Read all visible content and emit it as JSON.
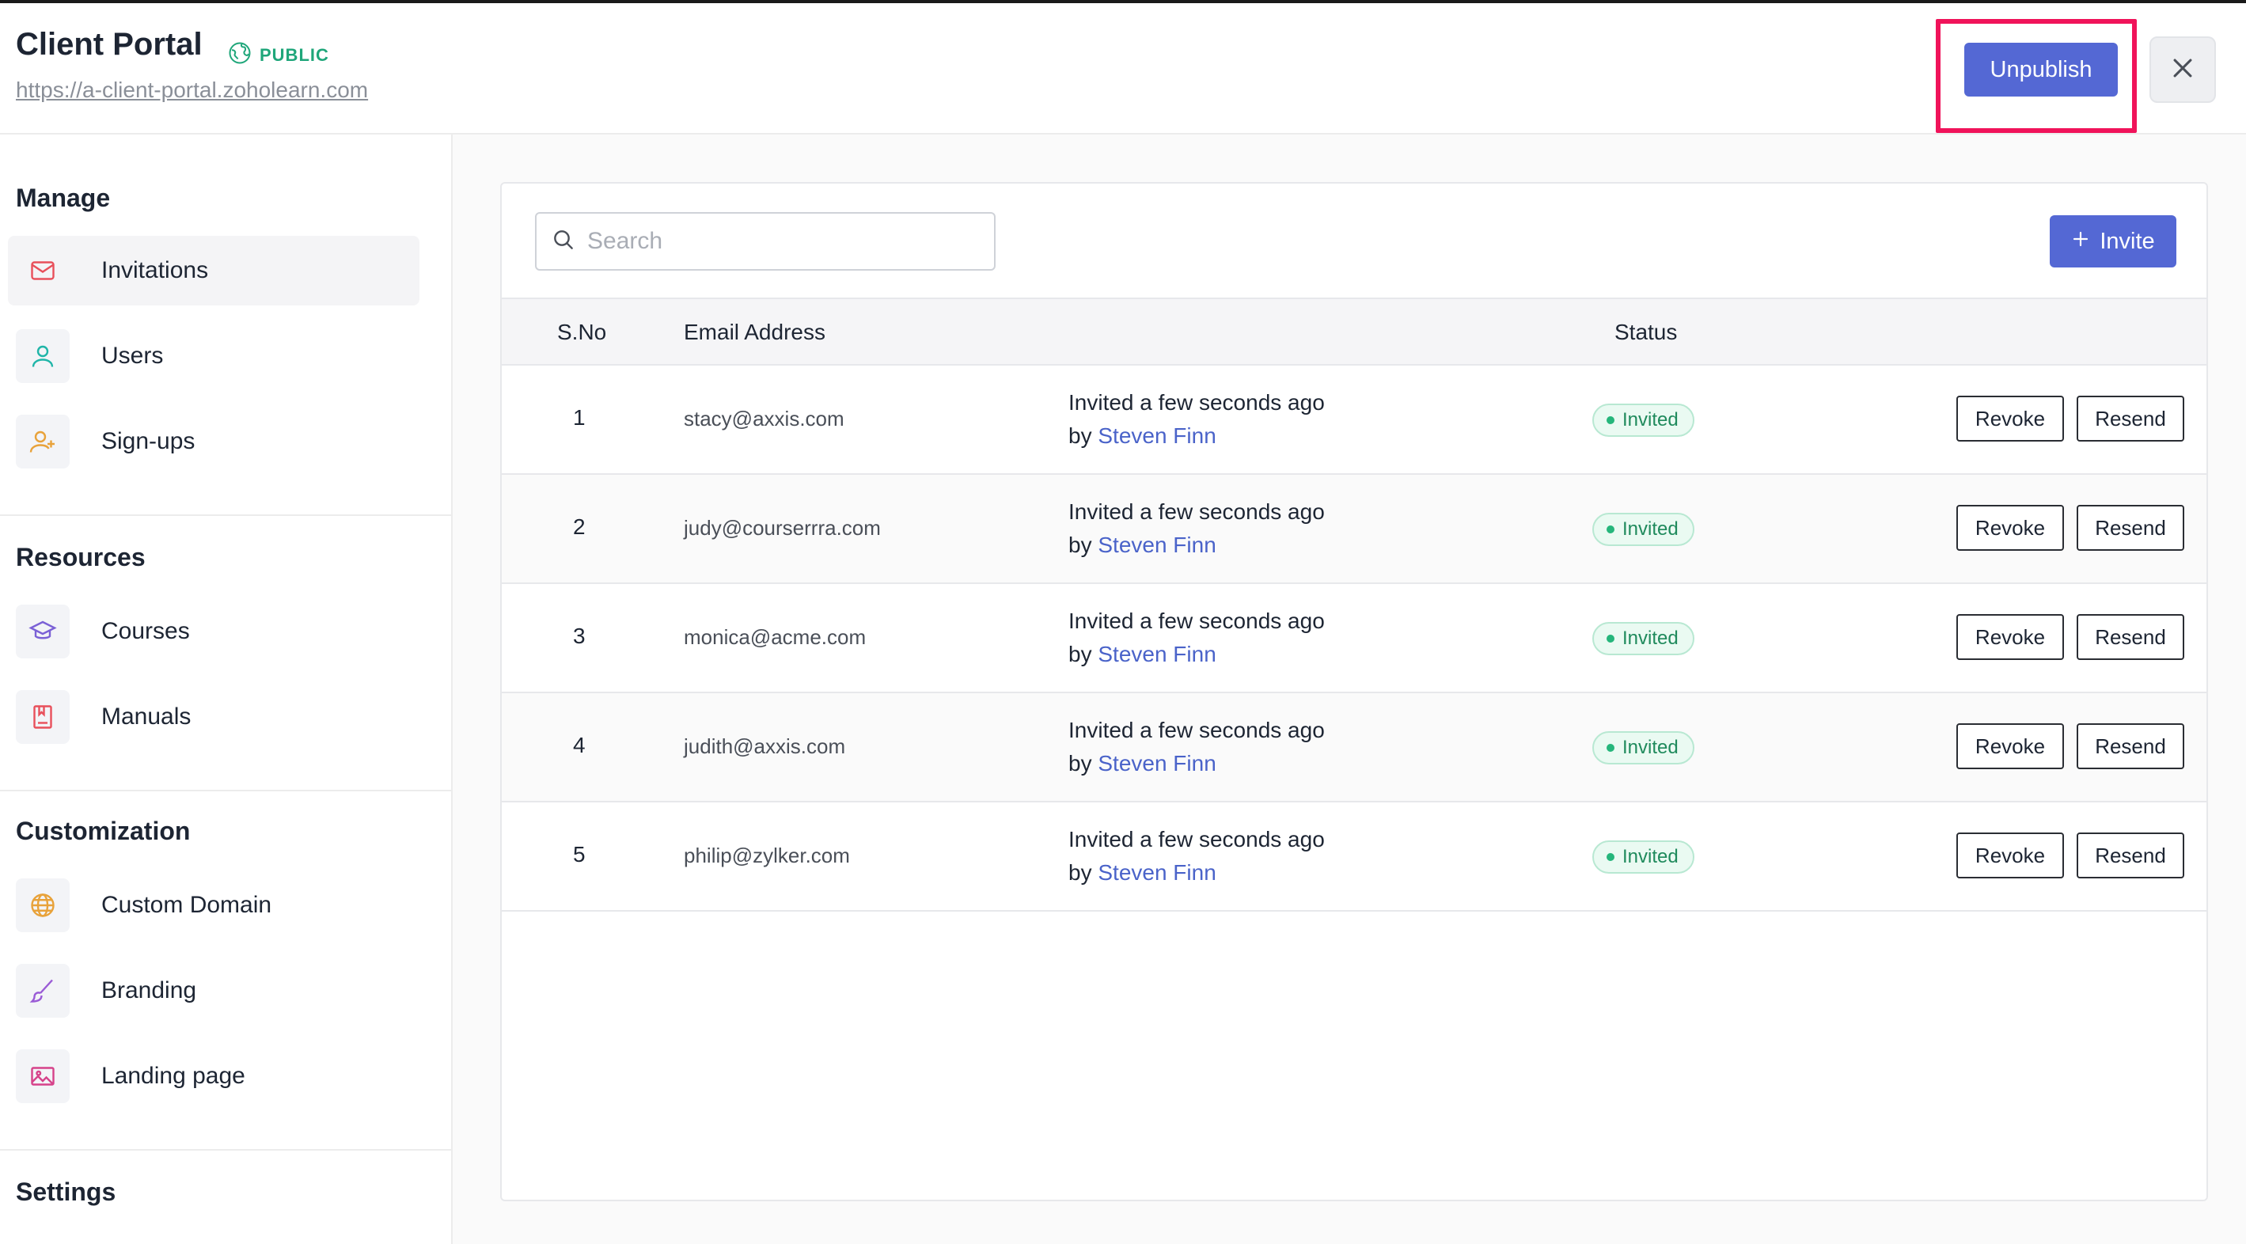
{
  "header": {
    "title": "Client Portal",
    "visibility_badge": "PUBLIC",
    "url": "https://a-client-portal.zoholearn.com",
    "unpublish_label": "Unpublish"
  },
  "sidebar": {
    "sections": [
      {
        "title": "Manage",
        "items": [
          {
            "label": "Invitations",
            "icon": "mail-icon",
            "active": true
          },
          {
            "label": "Users",
            "icon": "user-icon"
          },
          {
            "label": "Sign-ups",
            "icon": "user-add-icon"
          }
        ]
      },
      {
        "title": "Resources",
        "items": [
          {
            "label": "Courses",
            "icon": "graduation-cap-icon"
          },
          {
            "label": "Manuals",
            "icon": "book-icon"
          }
        ]
      },
      {
        "title": "Customization",
        "items": [
          {
            "label": "Custom Domain",
            "icon": "globe-icon"
          },
          {
            "label": "Branding",
            "icon": "brush-icon"
          },
          {
            "label": "Landing page",
            "icon": "image-icon"
          }
        ]
      },
      {
        "title": "Settings",
        "items": []
      }
    ]
  },
  "main": {
    "search_placeholder": "Search",
    "invite_label": "Invite",
    "columns": {
      "sno": "S.No",
      "email": "Email Address",
      "status": "Status"
    },
    "rows": [
      {
        "sno": "1",
        "email": "stacy@axxis.com",
        "invited": "Invited a few seconds ago",
        "by_prefix": "by",
        "by_name": "Steven Finn",
        "status": "Invited",
        "revoke": "Revoke",
        "resend": "Resend"
      },
      {
        "sno": "2",
        "email": "judy@courserrra.com",
        "invited": "Invited a few seconds ago",
        "by_prefix": "by",
        "by_name": "Steven Finn",
        "status": "Invited",
        "revoke": "Revoke",
        "resend": "Resend"
      },
      {
        "sno": "3",
        "email": "monica@acme.com",
        "invited": "Invited a few seconds ago",
        "by_prefix": "by",
        "by_name": "Steven Finn",
        "status": "Invited",
        "revoke": "Revoke",
        "resend": "Resend"
      },
      {
        "sno": "4",
        "email": "judith@axxis.com",
        "invited": "Invited a few seconds ago",
        "by_prefix": "by",
        "by_name": "Steven Finn",
        "status": "Invited",
        "revoke": "Revoke",
        "resend": "Resend"
      },
      {
        "sno": "5",
        "email": "philip@zylker.com",
        "invited": "Invited a few seconds ago",
        "by_prefix": "by",
        "by_name": "Steven Finn",
        "status": "Invited",
        "revoke": "Revoke",
        "resend": "Resend"
      }
    ]
  },
  "colors": {
    "accent": "#5468d4",
    "highlight": "#f0135a",
    "public_green": "#1fa67a",
    "status_green": "#25b67b",
    "link_blue": "#4a63c9"
  }
}
